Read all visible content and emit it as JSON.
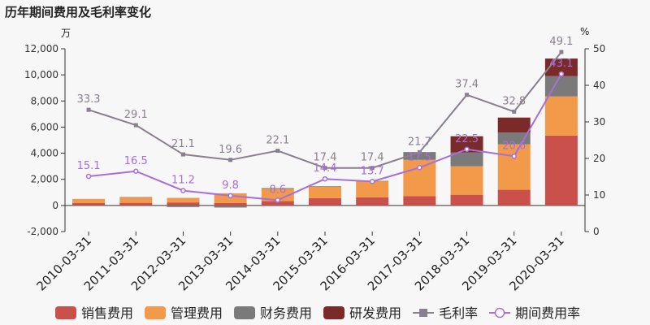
{
  "title": "历年期间费用及毛利率变化",
  "units": {
    "left": "万",
    "right": "%"
  },
  "colors": {
    "sales": "#c9504b",
    "admin": "#f2994a",
    "finance": "#7a7a7a",
    "rnd": "#7b2a2a",
    "gross_margin": "#8a7f8e",
    "expense_ratio": "#a66fdc"
  },
  "chart_data": {
    "type": "bar+line",
    "categories": [
      "2010-03-31",
      "2011-03-31",
      "2012-03-31",
      "2013-03-31",
      "2014-03-31",
      "2015-03-31",
      "2016-03-31",
      "2017-03-31",
      "2018-03-31",
      "2019-03-31",
      "2020-03-31"
    ],
    "left_axis": {
      "ylim": [
        -2000,
        12000
      ],
      "ticks": [
        -2000,
        0,
        2000,
        4000,
        6000,
        8000,
        10000,
        12000
      ],
      "tick_labels": [
        "-2,000",
        "0",
        "2,000",
        "4,000",
        "6,000",
        "8,000",
        "10,000",
        "12,000"
      ]
    },
    "right_axis": {
      "ylim": [
        0,
        50
      ],
      "ticks": [
        0,
        10,
        20,
        30,
        40,
        50
      ]
    },
    "bar_series": [
      {
        "name": "销售费用",
        "color_key": "sales",
        "values": [
          180,
          200,
          230,
          180,
          330,
          560,
          620,
          710,
          820,
          1200,
          5350
        ]
      },
      {
        "name": "管理费用",
        "color_key": "admin",
        "values": [
          320,
          420,
          350,
          750,
          940,
          880,
          1240,
          2780,
          2180,
          3480,
          3000
        ]
      },
      {
        "name": "财务费用",
        "color_key": "finance",
        "values": [
          -20,
          20,
          -120,
          -160,
          60,
          40,
          20,
          600,
          1050,
          900,
          1550
        ]
      },
      {
        "name": "研发费用",
        "color_key": "rnd",
        "values": [
          0,
          0,
          0,
          0,
          0,
          0,
          0,
          0,
          1250,
          1150,
          1350
        ]
      }
    ],
    "line_series": [
      {
        "name": "毛利率",
        "color_key": "gross_margin",
        "marker": "square",
        "values": [
          33.3,
          29.1,
          21.1,
          19.6,
          22.1,
          17.4,
          17.4,
          21.7,
          37.4,
          32.8,
          49.1
        ]
      },
      {
        "name": "期间费用率",
        "color_key": "expense_ratio",
        "marker": "circle",
        "values": [
          15.1,
          16.5,
          11.2,
          9.8,
          8.6,
          14.4,
          13.7,
          17.5,
          22.5,
          20.6,
          43.1
        ]
      }
    ],
    "data_labels": {
      "毛利率": [
        "33.3",
        "29.1",
        "21.1",
        "19.6",
        "22.1",
        "17.4",
        "17.4",
        "21.7",
        "37.4",
        "32.8",
        "49.1"
      ],
      "期间费用率": [
        "15.1",
        "16.5",
        "11.2",
        "9.8",
        "8.6",
        "14.4",
        "13.7",
        "17.5",
        "22.5",
        "20.6",
        "43.1"
      ]
    },
    "legend": {
      "position": "bottom",
      "items": [
        {
          "label": "销售费用",
          "kind": "bar",
          "color_key": "sales"
        },
        {
          "label": "管理费用",
          "kind": "bar",
          "color_key": "admin"
        },
        {
          "label": "财务费用",
          "kind": "bar",
          "color_key": "finance"
        },
        {
          "label": "研发费用",
          "kind": "bar",
          "color_key": "rnd"
        },
        {
          "label": "毛利率",
          "kind": "line-square",
          "color_key": "gross_margin"
        },
        {
          "label": "期间费用率",
          "kind": "line-circle",
          "color_key": "expense_ratio"
        }
      ]
    },
    "grid": false
  }
}
